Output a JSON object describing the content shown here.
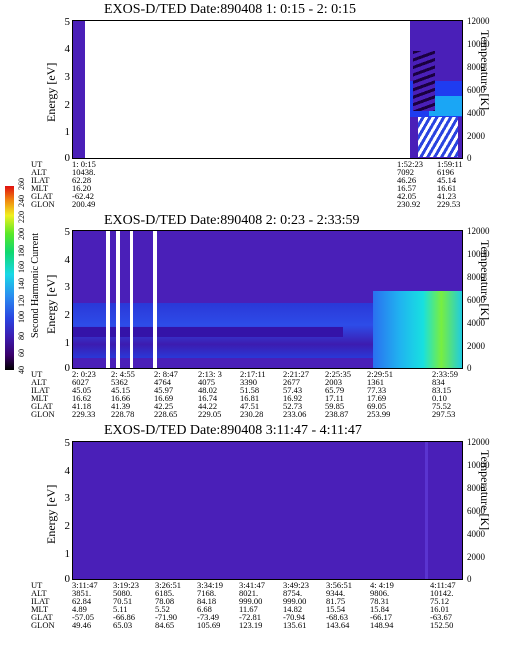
{
  "chart_data": [
    {
      "type": "heatmap",
      "title": "EXOS-D/TED   Date:890408  1: 0:15 - 2: 0:15",
      "ylabel": "Energy [eV]",
      "y2label": "Temperature [K]",
      "ylim": [
        0,
        5
      ],
      "y2lim": [
        0,
        12000
      ],
      "y_ticks": [
        "0",
        "1",
        "2",
        "3",
        "4",
        "5"
      ],
      "y2_ticks": [
        "0",
        "2000",
        "4000",
        "6000",
        "8000",
        "10000",
        "12000"
      ],
      "ephemeris": {
        "rows": [
          "UT",
          "ALT",
          "ILAT",
          "MLT",
          "GLAT",
          "GLON"
        ],
        "columns": [
          [
            "1: 0:15",
            "10438.",
            "62.28",
            "16.20",
            "-62.42",
            "200.49"
          ],
          [
            "1:52:23",
            "7092",
            "46.26",
            "16.57",
            "42.05",
            "230.92"
          ],
          [
            "1:59:11",
            "6196",
            "45.14",
            "16.61",
            "41.23",
            "229.53"
          ]
        ]
      }
    },
    {
      "type": "heatmap",
      "title": "EXOS-D/TED   Date:890408  2: 0:23 - 2:33:59",
      "ylabel": "Energy [eV]",
      "y2label": "Temperature [K]",
      "ylim": [
        0,
        5
      ],
      "y2lim": [
        0,
        12000
      ],
      "y_ticks": [
        "0",
        "1",
        "2",
        "3",
        "4",
        "5"
      ],
      "y2_ticks": [
        "0",
        "2000",
        "4000",
        "6000",
        "8000",
        "10000",
        "12000"
      ],
      "colorbar": {
        "label": "Second Harmonic Current",
        "ticks": [
          "40",
          "60",
          "80",
          "100",
          "120",
          "140",
          "160",
          "180",
          "200",
          "220",
          "240",
          "260"
        ]
      },
      "ephemeris": {
        "rows": [
          "UT",
          "ALT",
          "ILAT",
          "MLT",
          "GLAT",
          "GLON"
        ],
        "columns": [
          [
            "2: 0:23",
            "6027",
            "45.05",
            "16.62",
            "41.18",
            "229.33"
          ],
          [
            "2: 4:55",
            "5362",
            "45.15",
            "16.66",
            "41.39",
            "228.78"
          ],
          [
            "2: 8:47",
            "4764",
            "45.97",
            "16.69",
            "42.25",
            "228.65"
          ],
          [
            "2:13: 3",
            "4075",
            "48.02",
            "16.74",
            "44.22",
            "229.05"
          ],
          [
            "2:17:11",
            "3390",
            "51.58",
            "16.81",
            "47.51",
            "230.28"
          ],
          [
            "2:21:27",
            "2677",
            "57.43",
            "16.92",
            "52.73",
            "233.06"
          ],
          [
            "2:25:35",
            "2003",
            "65.79",
            "17.11",
            "59.85",
            "238.87"
          ],
          [
            "2:29:51",
            "1361",
            "77.33",
            "17.69",
            "69.05",
            "253.99"
          ],
          [
            "2:33:59",
            "834",
            "83.15",
            "0.10",
            "75.52",
            "297.53"
          ]
        ]
      }
    },
    {
      "type": "heatmap",
      "title": "EXOS-D/TED   Date:890408  3:11:47 - 4:11:47",
      "ylabel": "Energy [eV]",
      "y2label": "Temperature [K]",
      "ylim": [
        0,
        5
      ],
      "y2lim": [
        0,
        12000
      ],
      "y_ticks": [
        "0",
        "1",
        "2",
        "3",
        "4",
        "5"
      ],
      "y2_ticks": [
        "0",
        "2000",
        "4000",
        "6000",
        "8000",
        "10000",
        "12000"
      ],
      "ephemeris": {
        "rows": [
          "UT",
          "ALT",
          "ILAT",
          "MLT",
          "GLAT",
          "GLON"
        ],
        "columns": [
          [
            "3:11:47",
            "3851.",
            "62.84",
            "4.89",
            "-57.05",
            "49.46"
          ],
          [
            "3:19:23",
            "5080.",
            "70.51",
            "5.11",
            "-66.86",
            "65.03"
          ],
          [
            "3:26:51",
            "6185.",
            "78.08",
            "5.52",
            "-71.90",
            "84.65"
          ],
          [
            "3:34:19",
            "7168.",
            "84.18",
            "6.68",
            "-73.49",
            "105.69"
          ],
          [
            "3:41:47",
            "8021.",
            "999.00",
            "11.67",
            "-72.81",
            "123.19"
          ],
          [
            "3:49:23",
            "8754.",
            "999.00",
            "14.82",
            "-70.94",
            "135.61"
          ],
          [
            "3:56:51",
            "9344.",
            "81.75",
            "15.54",
            "-68.63",
            "143.64"
          ],
          [
            "4: 4:19",
            "9806.",
            "78.31",
            "15.84",
            "-66.17",
            "148.94"
          ],
          [
            "4:11:47",
            "10142.",
            "75.12",
            "16.01",
            "-63.67",
            "152.50"
          ]
        ]
      }
    }
  ]
}
